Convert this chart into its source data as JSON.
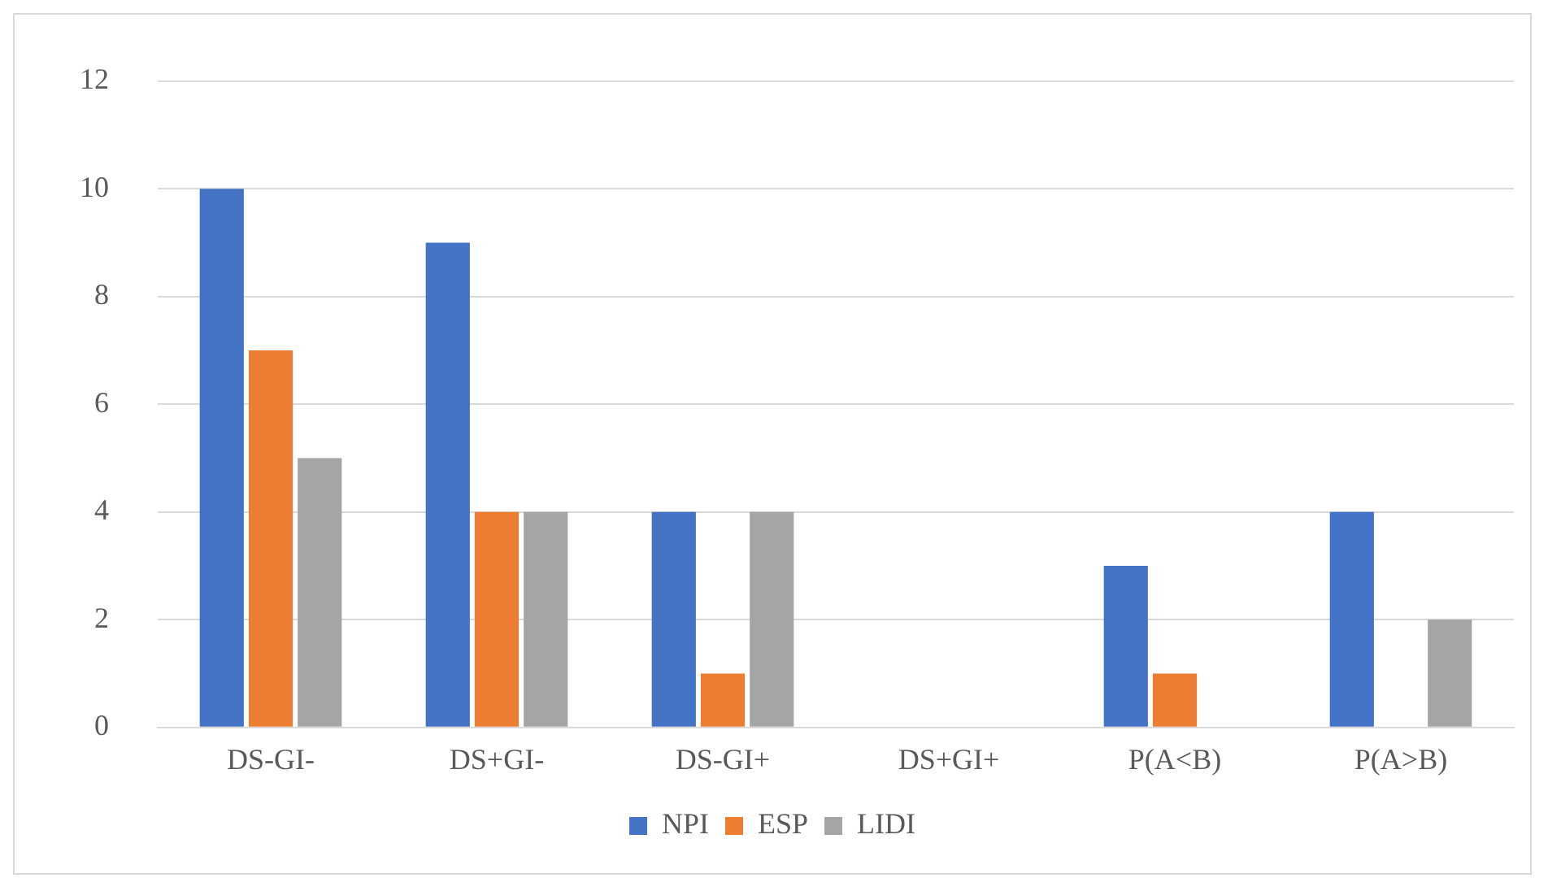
{
  "chart_data": {
    "type": "bar",
    "categories": [
      "DS-GI-",
      "DS+GI-",
      "DS-GI+",
      "DS+GI+",
      "P(A<B)",
      "P(A>B)"
    ],
    "series": [
      {
        "name": "NPI",
        "color": "#4472c4",
        "values": [
          10,
          9,
          4,
          0,
          3,
          4
        ]
      },
      {
        "name": "ESP",
        "color": "#ed7d31",
        "values": [
          7,
          4,
          1,
          0,
          1,
          0
        ]
      },
      {
        "name": "LIDI",
        "color": "#a5a5a5",
        "values": [
          5,
          4,
          4,
          0,
          0,
          2
        ]
      }
    ],
    "ylim": [
      0,
      12
    ],
    "yticks": [
      0,
      2,
      4,
      6,
      8,
      10,
      12
    ],
    "grid": "y",
    "legend": "bottom"
  }
}
